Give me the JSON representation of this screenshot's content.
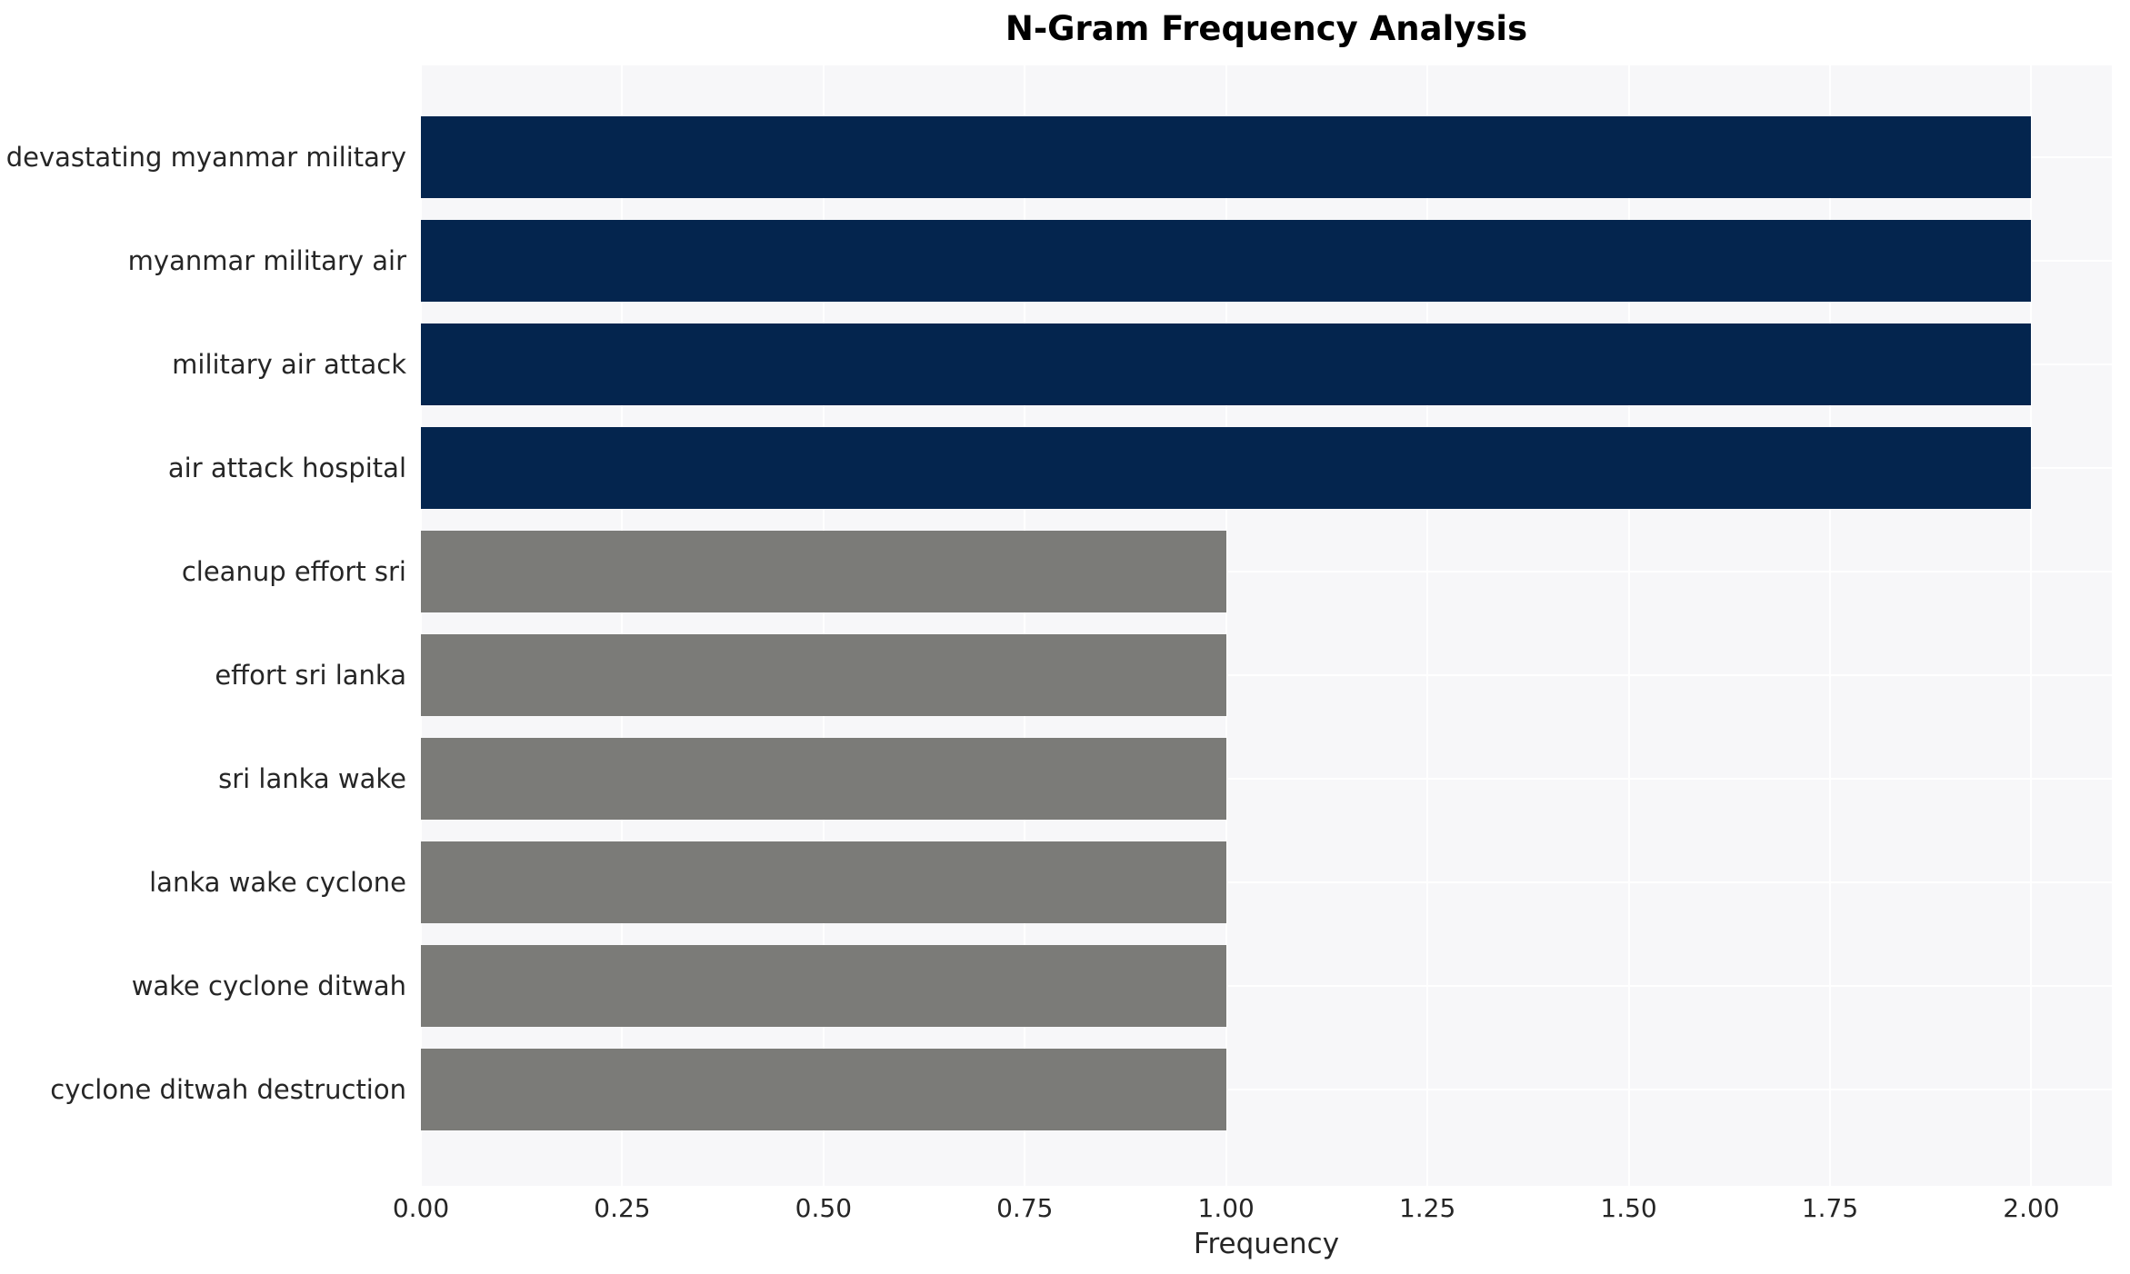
{
  "chart_data": {
    "type": "bar",
    "orientation": "horizontal",
    "title": "N-Gram Frequency Analysis",
    "xlabel": "Frequency",
    "ylabel": "",
    "categories": [
      "devastating myanmar military",
      "myanmar military air",
      "military air attack",
      "air attack hospital",
      "cleanup effort sri",
      "effort sri lanka",
      "sri lanka wake",
      "lanka wake cyclone",
      "wake cyclone ditwah",
      "cyclone ditwah destruction"
    ],
    "values": [
      2,
      2,
      2,
      2,
      1,
      1,
      1,
      1,
      1,
      1
    ],
    "bar_colors": [
      "#04254e",
      "#04254e",
      "#04254e",
      "#04254e",
      "#7b7b78",
      "#7b7b78",
      "#7b7b78",
      "#7b7b78",
      "#7b7b78",
      "#7b7b78"
    ],
    "xlim": [
      0,
      2.1
    ],
    "xtick_labels": [
      "0.00",
      "0.25",
      "0.50",
      "0.75",
      "1.00",
      "1.25",
      "1.50",
      "1.75",
      "2.00"
    ],
    "xtick_values": [
      0,
      0.25,
      0.5,
      0.75,
      1.0,
      1.25,
      1.5,
      1.75,
      2.0
    ],
    "grid": true,
    "legend": null,
    "colors": {
      "high_frequency_bar": "#04254e",
      "low_frequency_bar": "#7b7b78",
      "plot_background": "#f7f7f9",
      "grid_line": "#ffffff",
      "tick_text": "#262626",
      "title_text": "#000000"
    }
  }
}
